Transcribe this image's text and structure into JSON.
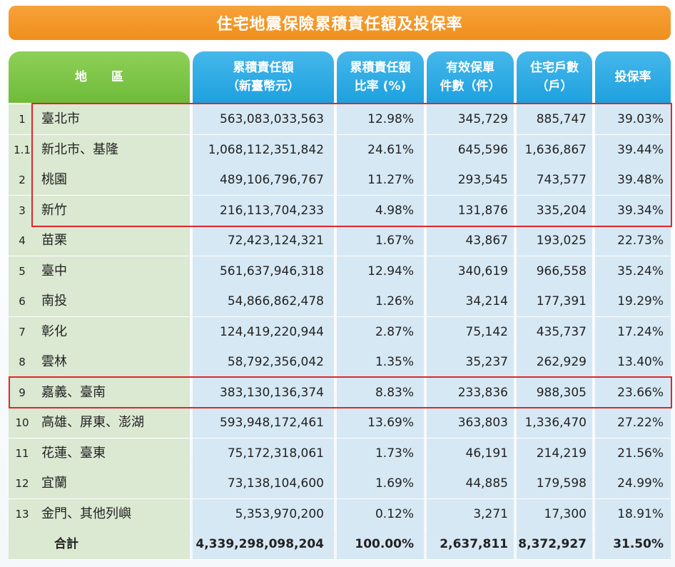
{
  "title": "住宅地震保險累積責任額及投保率",
  "headers": {
    "region": "地　　區",
    "liability": "累積責任額\n（新臺幣元）",
    "ratio": "累積責任額\n比率 (%)",
    "policies": "有效保單\n件數（件）",
    "households": "住宅戶數\n（戶）",
    "rate": "投保率"
  },
  "rows": [
    {
      "idx": "1",
      "name": "臺北市",
      "liability": "563,083,033,563",
      "ratio": "12.98%",
      "policies": "345,729",
      "households": "885,747",
      "rate": "39.03%"
    },
    {
      "idx": "1.1",
      "name": "新北市、基隆",
      "liability": "1,068,112,351,842",
      "ratio": "24.61%",
      "policies": "645,596",
      "households": "1,636,867",
      "rate": "39.44%"
    },
    {
      "idx": "2",
      "name": "桃園",
      "liability": "489,106,796,767",
      "ratio": "11.27%",
      "policies": "293,545",
      "households": "743,577",
      "rate": "39.48%"
    },
    {
      "idx": "3",
      "name": "新竹",
      "liability": "216,113,704,233",
      "ratio": "4.98%",
      "policies": "131,876",
      "households": "335,204",
      "rate": "39.34%"
    },
    {
      "idx": "4",
      "name": "苗栗",
      "liability": "72,423,124,321",
      "ratio": "1.67%",
      "policies": "43,867",
      "households": "193,025",
      "rate": "22.73%"
    },
    {
      "idx": "5",
      "name": "臺中",
      "liability": "561,637,946,318",
      "ratio": "12.94%",
      "policies": "340,619",
      "households": "966,558",
      "rate": "35.24%"
    },
    {
      "idx": "6",
      "name": "南投",
      "liability": "54,866,862,478",
      "ratio": "1.26%",
      "policies": "34,214",
      "households": "177,391",
      "rate": "19.29%"
    },
    {
      "idx": "7",
      "name": "彰化",
      "liability": "124,419,220,944",
      "ratio": "2.87%",
      "policies": "75,142",
      "households": "435,737",
      "rate": "17.24%"
    },
    {
      "idx": "8",
      "name": "雲林",
      "liability": "58,792,356,042",
      "ratio": "1.35%",
      "policies": "35,237",
      "households": "262,929",
      "rate": "13.40%"
    },
    {
      "idx": "9",
      "name": "嘉義、臺南",
      "liability": "383,130,136,374",
      "ratio": "8.83%",
      "policies": "233,836",
      "households": "988,305",
      "rate": "23.66%"
    },
    {
      "idx": "10",
      "name": "高雄、屏東、澎湖",
      "liability": "593,948,172,461",
      "ratio": "13.69%",
      "policies": "363,803",
      "households": "1,336,470",
      "rate": "27.22%"
    },
    {
      "idx": "11",
      "name": "花蓮、臺東",
      "liability": "75,172,318,061",
      "ratio": "1.73%",
      "policies": "46,191",
      "households": "214,219",
      "rate": "21.56%"
    },
    {
      "idx": "12",
      "name": "宜蘭",
      "liability": "73,138,104,600",
      "ratio": "1.69%",
      "policies": "44,885",
      "households": "179,598",
      "rate": "24.99%"
    },
    {
      "idx": "13",
      "name": "金門、其他列嶼",
      "liability": "5,353,970,200",
      "ratio": "0.12%",
      "policies": "3,271",
      "households": "17,300",
      "rate": "18.91%"
    }
  ],
  "total": {
    "label": "合計",
    "liability": "4,339,298,098,204",
    "ratio": "100.00%",
    "policies": "2,637,811",
    "households": "8,372,927",
    "rate": "31.50%"
  },
  "colors": {
    "title_bar": "#ef8f1c",
    "region_header": "#6fbb3a",
    "column_header": "#1ea1df",
    "region_cell": "#dbe8d2",
    "data_cell": "#d6e8f4",
    "highlight_box": "#e0262b"
  }
}
